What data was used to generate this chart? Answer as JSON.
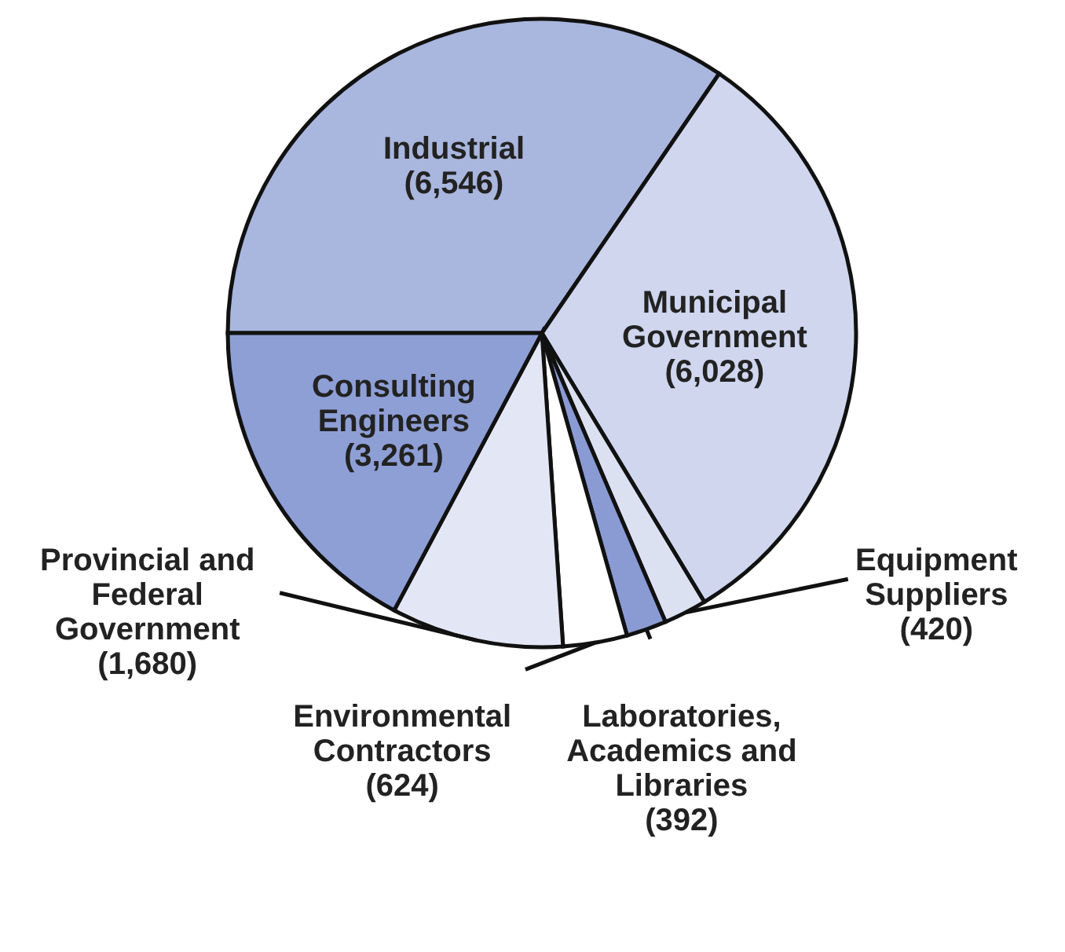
{
  "chart_data": {
    "type": "pie",
    "categories": [
      "Industrial",
      "Municipal Government",
      "Equipment Suppliers",
      "Laboratories, Academics and Libraries",
      "Environmental Contractors",
      "Provincial and Federal Government",
      "Consulting Engineers"
    ],
    "values": [
      6546,
      6028,
      420,
      392,
      624,
      1680,
      3261
    ],
    "value_labels": [
      "(6,546)",
      "(6,028)",
      "(420)",
      "(392)",
      "(624)",
      "(1,680)",
      "(3,261)"
    ],
    "colors": [
      "#a9b6de",
      "#cfd6ee",
      "#dce1f2",
      "#8a9bd4",
      "#ffffff",
      "#e3e7f5",
      "#8e9fd6"
    ]
  }
}
